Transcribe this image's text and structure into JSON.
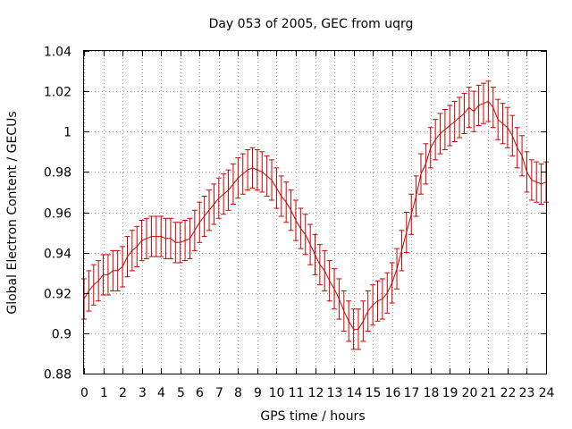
{
  "chart_data": {
    "type": "line",
    "title": "Day 053 of 2005, GEC from uqrg",
    "xlabel": "GPS time / hours",
    "ylabel": "Global Electron Content / GECUs",
    "xlim": [
      0,
      24
    ],
    "ylim": [
      0.88,
      1.04
    ],
    "xticks": [
      "0",
      "1",
      "2",
      "3",
      "4",
      "5",
      "6",
      "7",
      "8",
      "9",
      "10",
      "11",
      "12",
      "13",
      "14",
      "15",
      "16",
      "17",
      "18",
      "19",
      "20",
      "21",
      "22",
      "23",
      "24"
    ],
    "yticks": [
      "0.88",
      "0.9",
      "0.92",
      "0.94",
      "0.96",
      "0.98",
      "1",
      "1.02",
      "1.04"
    ],
    "grid": true,
    "series_color": "#cc0000",
    "series": [
      {
        "x": [
          0,
          0.25,
          0.5,
          0.75,
          1,
          1.25,
          1.5,
          1.75,
          2,
          2.25,
          2.5,
          2.75,
          3,
          3.25,
          3.5,
          3.75,
          4,
          4.25,
          4.5,
          4.75,
          5,
          5.25,
          5.5,
          5.75,
          6,
          6.25,
          6.5,
          6.75,
          7,
          7.25,
          7.5,
          7.75,
          8,
          8.25,
          8.5,
          8.75,
          9,
          9.25,
          9.5,
          9.75,
          10,
          10.25,
          10.5,
          10.75,
          11,
          11.25,
          11.5,
          11.75,
          12,
          12.25,
          12.5,
          12.75,
          13,
          13.25,
          13.5,
          13.75,
          14,
          14.25,
          14.5,
          14.75,
          15,
          15.25,
          15.5,
          15.75,
          16,
          16.25,
          16.5,
          16.75,
          17,
          17.25,
          17.5,
          17.75,
          18,
          18.25,
          18.5,
          18.75,
          19,
          19.25,
          19.5,
          19.75,
          20,
          20.25,
          20.5,
          20.75,
          21,
          21.25,
          21.5,
          21.75,
          22,
          22.25,
          22.5,
          22.75,
          23,
          23.25,
          23.5,
          23.75,
          24
        ],
        "y": [
          0.917,
          0.921,
          0.924,
          0.926,
          0.929,
          0.929,
          0.931,
          0.931,
          0.933,
          0.938,
          0.941,
          0.943,
          0.946,
          0.947,
          0.948,
          0.948,
          0.948,
          0.947,
          0.947,
          0.945,
          0.945,
          0.946,
          0.947,
          0.951,
          0.955,
          0.958,
          0.961,
          0.964,
          0.967,
          0.969,
          0.971,
          0.974,
          0.977,
          0.979,
          0.981,
          0.982,
          0.981,
          0.98,
          0.978,
          0.976,
          0.972,
          0.968,
          0.965,
          0.961,
          0.956,
          0.952,
          0.949,
          0.944,
          0.939,
          0.934,
          0.931,
          0.926,
          0.922,
          0.917,
          0.911,
          0.906,
          0.902,
          0.902,
          0.906,
          0.911,
          0.914,
          0.916,
          0.917,
          0.92,
          0.925,
          0.932,
          0.941,
          0.95,
          0.959,
          0.968,
          0.979,
          0.984,
          0.992,
          0.996,
          0.999,
          1.001,
          1.003,
          1.005,
          1.007,
          1.009,
          1.012,
          1.01,
          1.013,
          1.014,
          1.015,
          1.012,
          1.006,
          1.004,
          1.002,
          0.998,
          0.992,
          0.988,
          0.98,
          0.976,
          0.975,
          0.974,
          0.975
        ],
        "error": [
          0.01,
          0.01,
          0.01,
          0.01,
          0.01,
          0.01,
          0.01,
          0.01,
          0.01,
          0.01,
          0.01,
          0.01,
          0.01,
          0.01,
          0.01,
          0.01,
          0.01,
          0.01,
          0.01,
          0.01,
          0.01,
          0.01,
          0.01,
          0.01,
          0.01,
          0.01,
          0.01,
          0.01,
          0.01,
          0.01,
          0.01,
          0.01,
          0.01,
          0.01,
          0.01,
          0.01,
          0.01,
          0.01,
          0.01,
          0.01,
          0.01,
          0.01,
          0.01,
          0.01,
          0.01,
          0.01,
          0.01,
          0.01,
          0.01,
          0.01,
          0.01,
          0.01,
          0.01,
          0.01,
          0.01,
          0.01,
          0.01,
          0.01,
          0.01,
          0.01,
          0.01,
          0.01,
          0.01,
          0.01,
          0.01,
          0.01,
          0.01,
          0.01,
          0.01,
          0.01,
          0.01,
          0.01,
          0.01,
          0.01,
          0.01,
          0.01,
          0.01,
          0.01,
          0.01,
          0.01,
          0.01,
          0.01,
          0.01,
          0.01,
          0.01,
          0.01,
          0.01,
          0.01,
          0.01,
          0.01,
          0.01,
          0.01,
          0.01,
          0.01,
          0.01,
          0.01,
          0.01
        ]
      }
    ]
  }
}
